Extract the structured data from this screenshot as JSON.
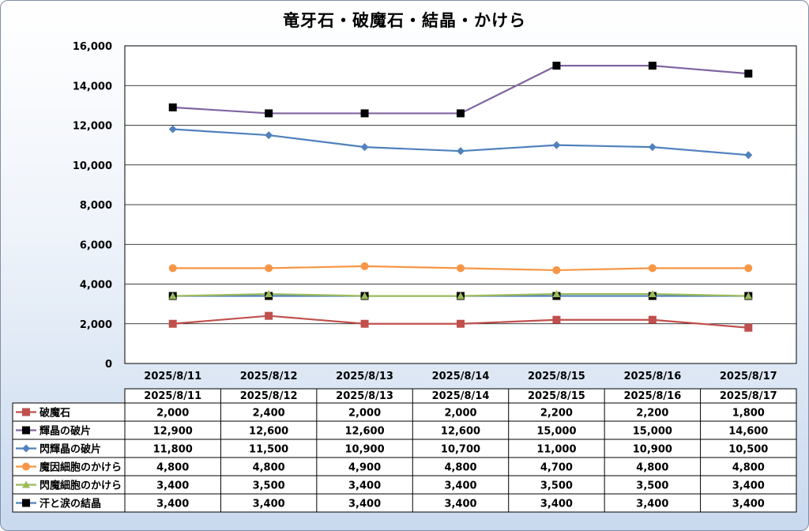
{
  "chart_data": {
    "type": "line",
    "title": "竜牙石・破魔石・結晶・かけら",
    "xlabel": "",
    "ylabel": "",
    "categories": [
      "2025/8/11",
      "2025/8/12",
      "2025/8/13",
      "2025/8/14",
      "2025/8/15",
      "2025/8/16",
      "2025/8/17"
    ],
    "ylim": [
      0,
      16000
    ],
    "yticks": [
      "0",
      "2,000",
      "4,000",
      "6,000",
      "8,000",
      "10,000",
      "12,000",
      "14,000",
      "16,000"
    ],
    "grid": true,
    "legend": "data-table",
    "series": [
      {
        "name": "破魔石",
        "color": "#c0504d",
        "marker": "square",
        "values": [
          2000,
          2400,
          2000,
          2000,
          2200,
          2200,
          1800
        ],
        "labels": [
          "2,000",
          "2,400",
          "2,000",
          "2,000",
          "2,200",
          "2,200",
          "1,800"
        ]
      },
      {
        "name": "輝晶の破片",
        "color": "#8064a2",
        "marker": "square-black",
        "values": [
          12900,
          12600,
          12600,
          12600,
          15000,
          15000,
          14600
        ],
        "labels": [
          "12,900",
          "12,600",
          "12,600",
          "12,600",
          "15,000",
          "15,000",
          "14,600"
        ]
      },
      {
        "name": "閃輝晶の破片",
        "color": "#4f81bd",
        "marker": "diamond",
        "values": [
          11800,
          11500,
          10900,
          10700,
          11000,
          10900,
          10500
        ],
        "labels": [
          "11,800",
          "11,500",
          "10,900",
          "10,700",
          "11,000",
          "10,900",
          "10,500"
        ]
      },
      {
        "name": "魔因細胞のかけら",
        "color": "#f79646",
        "marker": "circle",
        "values": [
          4800,
          4800,
          4900,
          4800,
          4700,
          4800,
          4800
        ],
        "labels": [
          "4,800",
          "4,800",
          "4,900",
          "4,800",
          "4,700",
          "4,800",
          "4,800"
        ]
      },
      {
        "name": "閃魔細胞のかけら",
        "color": "#9bbb59",
        "marker": "triangle",
        "values": [
          3400,
          3500,
          3400,
          3400,
          3500,
          3500,
          3400
        ],
        "labels": [
          "3,400",
          "3,500",
          "3,400",
          "3,400",
          "3,500",
          "3,500",
          "3,400"
        ]
      },
      {
        "name": "汗と涙の結晶",
        "color": "#4f81bd",
        "marker": "square-black",
        "values": [
          3400,
          3400,
          3400,
          3400,
          3400,
          3400,
          3400
        ],
        "labels": [
          "3,400",
          "3,400",
          "3,400",
          "3,400",
          "3,400",
          "3,400",
          "3,400"
        ]
      }
    ]
  }
}
